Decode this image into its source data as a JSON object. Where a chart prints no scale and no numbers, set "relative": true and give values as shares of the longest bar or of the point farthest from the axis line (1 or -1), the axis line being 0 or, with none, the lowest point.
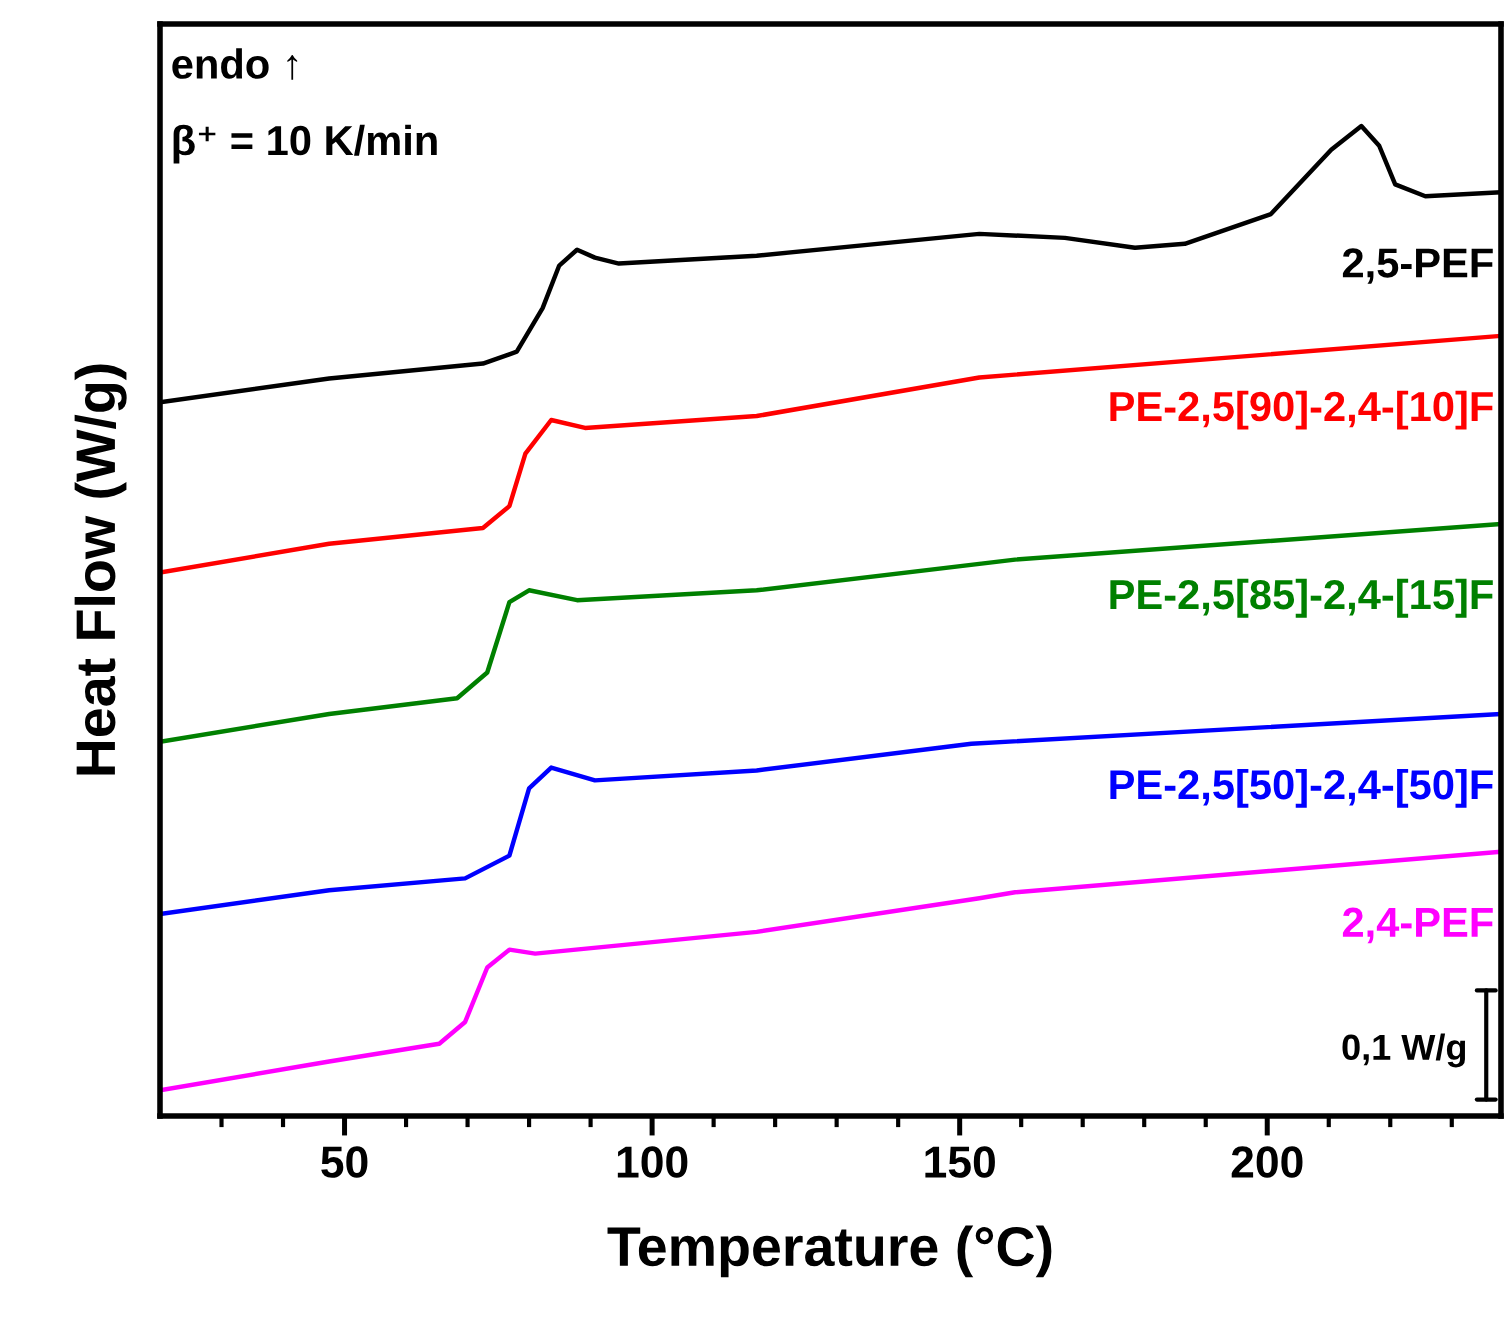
{
  "chart_data": {
    "type": "line",
    "relative": true,
    "xlabel": "Temperature (°C)",
    "ylabel": "Heat Flow (W/g)",
    "xlim": [
      20,
      238
    ],
    "xticks": [
      {
        "value": 30,
        "label": null
      },
      {
        "value": 40,
        "label": null
      },
      50,
      {
        "value": 60,
        "label": null
      },
      {
        "value": 70,
        "label": null
      },
      {
        "value": 80,
        "label": null
      },
      {
        "value": 90,
        "label": null
      },
      100,
      {
        "value": 110,
        "label": null
      },
      {
        "value": 120,
        "label": null
      },
      {
        "value": 130,
        "label": null
      },
      {
        "value": 140,
        "label": null
      },
      150,
      {
        "value": 160,
        "label": null
      },
      {
        "value": 170,
        "label": null
      },
      {
        "value": 180,
        "label": null
      },
      {
        "value": 190,
        "label": null
      },
      200,
      {
        "value": 210,
        "label": null
      },
      {
        "value": 220,
        "label": null
      },
      {
        "value": 230,
        "label": null
      }
    ],
    "grid": false,
    "marker": "none",
    "line_style": "solid",
    "tick_labels": "x",
    "annotations": [
      "endo ↑",
      "β⁺ = 10 K/min",
      "0,1 W/g"
    ],
    "series": [
      {
        "name": "2,5-PEF",
        "color": "#000000",
        "x": [
          20,
          47.5,
          72.5,
          78.0,
          82.2,
          84.9,
          87.8,
          90.7,
          94.6,
          117.0,
          153.2,
          167.1,
          178.5,
          186.6,
          200.6,
          210.4,
          215.3,
          218.2,
          220.8,
          225.7,
          238
        ],
        "values": [
          0.721,
          0.745,
          0.76,
          0.772,
          0.816,
          0.859,
          0.875,
          0.867,
          0.861,
          0.869,
          0.891,
          0.887,
          0.877,
          0.881,
          0.911,
          0.976,
          1.0,
          0.98,
          0.941,
          0.929,
          0.933
        ]
      },
      {
        "name": "PE-2,5[90]-2,4-[10]F",
        "color": "#ff0000",
        "x": [
          20,
          47.5,
          72.5,
          76.8,
          79.4,
          83.6,
          89.1,
          117,
          153.2,
          238
        ],
        "values": [
          0.549,
          0.578,
          0.594,
          0.616,
          0.669,
          0.703,
          0.695,
          0.707,
          0.746,
          0.788
        ]
      },
      {
        "name": "PE-2,5[85]-2,4-[15]F",
        "color": "#008000",
        "x": [
          20,
          47.5,
          68.3,
          73.2,
          76.8,
          80.0,
          87.8,
          117,
          159,
          238
        ],
        "values": [
          0.378,
          0.406,
          0.422,
          0.448,
          0.519,
          0.531,
          0.521,
          0.531,
          0.562,
          0.598
        ]
      },
      {
        "name": "PE-2,5[50]-2,4-[50]F",
        "color": "#0000ff",
        "x": [
          20,
          47.5,
          69.6,
          76.8,
          80.0,
          83.6,
          90.7,
          117,
          151.9,
          238
        ],
        "values": [
          0.204,
          0.228,
          0.24,
          0.263,
          0.331,
          0.352,
          0.339,
          0.349,
          0.376,
          0.406
        ]
      },
      {
        "name": "2,4-PEF",
        "color": "#ff00ff",
        "x": [
          20,
          47.5,
          65.4,
          69.6,
          73.2,
          76.8,
          81.0,
          117,
          153.2,
          159.0,
          238
        ],
        "values": [
          0.026,
          0.055,
          0.073,
          0.095,
          0.15,
          0.168,
          0.164,
          0.186,
          0.22,
          0.226,
          0.267
        ]
      }
    ]
  }
}
